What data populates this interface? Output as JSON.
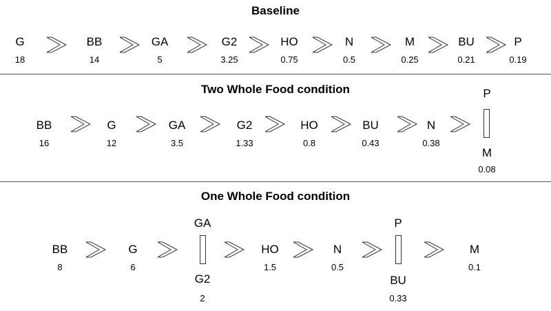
{
  "baseline": {
    "title": "Baseline",
    "items": [
      {
        "label": "G",
        "value": "18"
      },
      {
        "label": "BB",
        "value": "14"
      },
      {
        "label": "GA",
        "value": "5"
      },
      {
        "label": "G2",
        "value": "3.25"
      },
      {
        "label": "HO",
        "value": "0.75"
      },
      {
        "label": "N",
        "value": "0.5"
      },
      {
        "label": "M",
        "value": "0.25"
      },
      {
        "label": "BU",
        "value": "0.21"
      },
      {
        "label": "P",
        "value": "0.19"
      }
    ]
  },
  "two_whole_food": {
    "title": "Two Whole Food condition",
    "items": [
      {
        "label": "BB",
        "value": "16"
      },
      {
        "label": "G",
        "value": "12"
      },
      {
        "label": "GA",
        "value": "3.5"
      },
      {
        "label": "G2",
        "value": "1.33"
      },
      {
        "label": "HO",
        "value": "0.8"
      },
      {
        "label": "BU",
        "value": "0.43"
      },
      {
        "label": "N",
        "value": "0.38"
      }
    ],
    "tie": {
      "top_label": "P",
      "bottom_label": "M",
      "value": "0.08"
    }
  },
  "one_whole_food": {
    "title": "One Whole Food condition",
    "items": [
      {
        "label": "BB",
        "value": "8"
      },
      {
        "label": "G",
        "value": "6"
      },
      {
        "label": "HO",
        "value": "1.5"
      },
      {
        "label": "N",
        "value": "0.5"
      },
      {
        "label": "M",
        "value": "0.1"
      }
    ],
    "tie1": {
      "top_label": "GA",
      "bottom_label": "G2",
      "value": "2"
    },
    "tie2": {
      "top_label": "P",
      "bottom_label": "BU",
      "value": "0.33"
    }
  }
}
